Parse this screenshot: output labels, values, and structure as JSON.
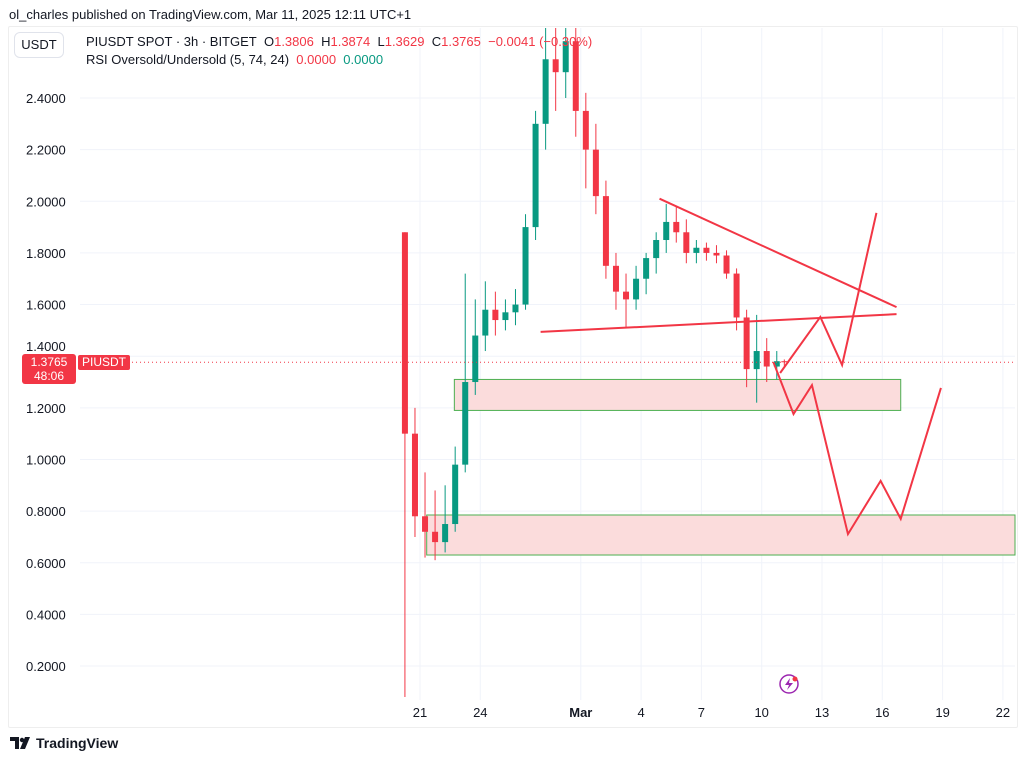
{
  "published": "ol_charles published on TradingView.com, Mar 11, 2025 12:11 UTC+1",
  "unit_button": "USDT",
  "legend": {
    "symbol": "PIUSDT SPOT · 3h · BITGET",
    "o_label": "O",
    "o": "1.3806",
    "h_label": "H",
    "h": "1.3874",
    "l_label": "L",
    "l": "1.3629",
    "c_label": "C",
    "c": "1.3765",
    "change": "−0.0041 (−0.30%)",
    "indicator": "RSI Oversold/Undersold (5, 74, 24)",
    "ind_v1": "0.0000",
    "ind_v2": "0.0000"
  },
  "price_badge": {
    "price": "1.3765",
    "countdown": "48:06",
    "symbol": "PIUSDT"
  },
  "brand": "TradingView",
  "colors": {
    "up": "#089981",
    "down": "#f23645",
    "drawing": "#f23645",
    "zone_fill": "#fbdcdc",
    "zone_border": "#4caf50"
  },
  "chart_data": {
    "type": "candlestick",
    "ylim": [
      0.08,
      2.7
    ],
    "y_ticks": [
      "0.2000",
      "0.4000",
      "0.6000",
      "0.8000",
      "1.0000",
      "1.2000",
      "1.4000",
      "1.6000",
      "1.8000",
      "2.0000",
      "2.2000",
      "2.4000"
    ],
    "x_ticks": [
      {
        "label": "21",
        "date": "2025-02-21"
      },
      {
        "label": "24",
        "date": "2025-02-24"
      },
      {
        "label": "Mar",
        "date": "2025-03-01"
      },
      {
        "label": "4",
        "date": "2025-03-04"
      },
      {
        "label": "7",
        "date": "2025-03-07"
      },
      {
        "label": "10",
        "date": "2025-03-10"
      },
      {
        "label": "13",
        "date": "2025-03-13"
      },
      {
        "label": "16",
        "date": "2025-03-16"
      },
      {
        "label": "19",
        "date": "2025-03-19"
      },
      {
        "label": "22",
        "date": "2025-03-22"
      }
    ],
    "last_price": 1.3765,
    "candles": [
      [
        "2025-02-20T06:00",
        1.88,
        1.88,
        0.08,
        1.1
      ],
      [
        "2025-02-20T18:00",
        1.1,
        1.2,
        0.7,
        0.78
      ],
      [
        "2025-02-21T06:00",
        0.78,
        0.95,
        0.62,
        0.72
      ],
      [
        "2025-02-21T18:00",
        0.72,
        0.88,
        0.61,
        0.68
      ],
      [
        "2025-02-22T06:00",
        0.68,
        0.9,
        0.64,
        0.75
      ],
      [
        "2025-02-22T18:00",
        0.75,
        1.05,
        0.72,
        0.98
      ],
      [
        "2025-02-23T06:00",
        0.98,
        1.72,
        0.95,
        1.3
      ],
      [
        "2025-02-23T18:00",
        1.3,
        1.62,
        1.25,
        1.48
      ],
      [
        "2025-02-24T06:00",
        1.48,
        1.69,
        1.42,
        1.58
      ],
      [
        "2025-02-24T18:00",
        1.58,
        1.65,
        1.48,
        1.54
      ],
      [
        "2025-02-25T06:00",
        1.54,
        1.62,
        1.5,
        1.57
      ],
      [
        "2025-02-25T18:00",
        1.57,
        1.66,
        1.52,
        1.6
      ],
      [
        "2025-02-26T06:00",
        1.6,
        1.95,
        1.58,
        1.9
      ],
      [
        "2025-02-26T18:00",
        1.9,
        2.35,
        1.85,
        2.3
      ],
      [
        "2025-02-27T06:00",
        2.3,
        2.7,
        2.2,
        2.55
      ],
      [
        "2025-02-27T18:00",
        2.55,
        2.7,
        2.35,
        2.5
      ],
      [
        "2025-02-28T06:00",
        2.5,
        2.7,
        2.4,
        2.62
      ],
      [
        "2025-02-28T18:00",
        2.62,
        2.7,
        2.25,
        2.35
      ],
      [
        "2025-03-01T06:00",
        2.35,
        2.42,
        2.05,
        2.2
      ],
      [
        "2025-03-01T18:00",
        2.2,
        2.3,
        1.95,
        2.02
      ],
      [
        "2025-03-02T06:00",
        2.02,
        2.08,
        1.7,
        1.75
      ],
      [
        "2025-03-02T18:00",
        1.75,
        1.8,
        1.58,
        1.65
      ],
      [
        "2025-03-03T06:00",
        1.65,
        1.72,
        1.51,
        1.62
      ],
      [
        "2025-03-03T18:00",
        1.62,
        1.75,
        1.58,
        1.7
      ],
      [
        "2025-03-04T06:00",
        1.7,
        1.8,
        1.64,
        1.78
      ],
      [
        "2025-03-04T18:00",
        1.78,
        1.88,
        1.72,
        1.85
      ],
      [
        "2025-03-05T06:00",
        1.85,
        1.99,
        1.8,
        1.92
      ],
      [
        "2025-03-05T18:00",
        1.92,
        1.98,
        1.84,
        1.88
      ],
      [
        "2025-03-06T06:00",
        1.88,
        1.93,
        1.76,
        1.8
      ],
      [
        "2025-03-06T18:00",
        1.8,
        1.85,
        1.76,
        1.82
      ],
      [
        "2025-03-07T06:00",
        1.82,
        1.84,
        1.77,
        1.8
      ],
      [
        "2025-03-07T18:00",
        1.8,
        1.83,
        1.76,
        1.79
      ],
      [
        "2025-03-08T06:00",
        1.79,
        1.81,
        1.7,
        1.72
      ],
      [
        "2025-03-08T18:00",
        1.72,
        1.74,
        1.5,
        1.55
      ],
      [
        "2025-03-09T06:00",
        1.55,
        1.58,
        1.28,
        1.35
      ],
      [
        "2025-03-09T18:00",
        1.35,
        1.56,
        1.22,
        1.42
      ],
      [
        "2025-03-10T06:00",
        1.42,
        1.47,
        1.3,
        1.36
      ],
      [
        "2025-03-10T18:00",
        1.36,
        1.42,
        1.31,
        1.3806
      ],
      [
        "2025-03-11T03:00",
        1.3806,
        1.3874,
        1.3629,
        1.3765
      ]
    ],
    "zones": [
      {
        "from": "2025-02-22T17:00",
        "to": "2025-03-16T22:00",
        "top": 1.31,
        "bottom": 1.19
      },
      {
        "from": "2025-02-21T08:00",
        "to": "2025-03-24T00:00",
        "top": 0.785,
        "bottom": 0.63
      }
    ],
    "trendlines": [
      [
        [
          "2025-03-04T22:00",
          2.01
        ],
        [
          "2025-03-16T17:00",
          1.59
        ]
      ],
      [
        [
          "2025-02-27T00:00",
          1.494
        ],
        [
          "2025-03-16T17:00",
          1.563
        ]
      ]
    ],
    "projections": [
      [
        [
          "2025-03-10T22:00",
          1.335
        ],
        [
          "2025-03-12T22:00",
          1.552
        ],
        [
          "2025-03-14T00:00",
          1.366
        ],
        [
          "2025-03-15T17:00",
          1.955
        ]
      ],
      [
        [
          "2025-03-10T14:00",
          1.377
        ],
        [
          "2025-03-11T14:00",
          1.176
        ],
        [
          "2025-03-12T12:00",
          1.288
        ],
        [
          "2025-03-14T07:00",
          0.711
        ],
        [
          "2025-03-15T22:00",
          0.917
        ],
        [
          "2025-03-16T22:00",
          0.77
        ],
        [
          "2025-03-18T22:00",
          1.277
        ]
      ]
    ]
  }
}
